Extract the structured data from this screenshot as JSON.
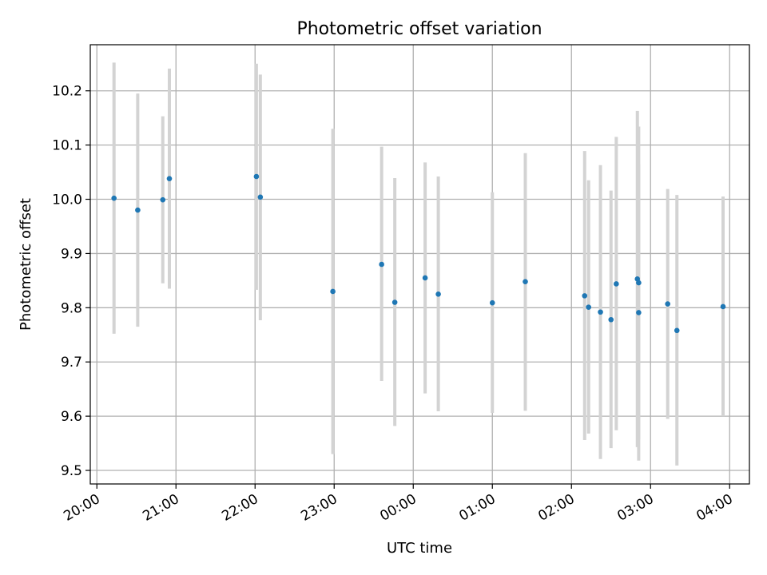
{
  "chart_data": {
    "type": "scatter",
    "title": "Photometric offset variation",
    "xlabel": "UTC time",
    "ylabel": "Photometric offset",
    "grid": true,
    "legend": "none",
    "x_range": [
      "19:55",
      "04:15"
    ],
    "ylim": [
      9.475,
      10.285
    ],
    "x_ticks": [
      "20:00",
      "21:00",
      "22:00",
      "23:00",
      "00:00",
      "01:00",
      "02:00",
      "03:00",
      "04:00"
    ],
    "y_ticks": [
      "9.5",
      "9.6",
      "9.7",
      "9.8",
      "9.9",
      "10.0",
      "10.1",
      "10.2"
    ],
    "colors": {
      "point": "#1f77b4",
      "errorbar": "#d3d3d3",
      "grid": "#b0b0b0"
    },
    "points": [
      {
        "t": "20:13",
        "y": 10.002,
        "ylow": 9.752,
        "yhigh": 10.252
      },
      {
        "t": "20:31",
        "y": 9.98,
        "ylow": 9.765,
        "yhigh": 10.195
      },
      {
        "t": "20:50",
        "y": 9.999,
        "ylow": 9.845,
        "yhigh": 10.153
      },
      {
        "t": "20:55",
        "y": 10.038,
        "ylow": 9.835,
        "yhigh": 10.241
      },
      {
        "t": "22:01",
        "y": 10.042,
        "ylow": 9.833,
        "yhigh": 10.25
      },
      {
        "t": "22:04",
        "y": 10.004,
        "ylow": 9.777,
        "yhigh": 10.23
      },
      {
        "t": "22:59",
        "y": 9.83,
        "ylow": 9.53,
        "yhigh": 10.13
      },
      {
        "t": "23:36",
        "y": 9.88,
        "ylow": 9.665,
        "yhigh": 10.097
      },
      {
        "t": "23:46",
        "y": 9.81,
        "ylow": 9.582,
        "yhigh": 10.039
      },
      {
        "t": "00:09",
        "y": 9.855,
        "ylow": 9.642,
        "yhigh": 10.068
      },
      {
        "t": "00:19",
        "y": 9.825,
        "ylow": 9.609,
        "yhigh": 10.042
      },
      {
        "t": "01:00",
        "y": 9.809,
        "ylow": 9.606,
        "yhigh": 10.013
      },
      {
        "t": "01:25",
        "y": 9.848,
        "ylow": 9.61,
        "yhigh": 10.085
      },
      {
        "t": "02:10",
        "y": 9.822,
        "ylow": 9.556,
        "yhigh": 10.089
      },
      {
        "t": "02:13",
        "y": 9.801,
        "ylow": 9.568,
        "yhigh": 10.035
      },
      {
        "t": "02:22",
        "y": 9.792,
        "ylow": 9.521,
        "yhigh": 10.063
      },
      {
        "t": "02:30",
        "y": 9.778,
        "ylow": 9.541,
        "yhigh": 10.016
      },
      {
        "t": "02:34",
        "y": 9.844,
        "ylow": 9.574,
        "yhigh": 10.115
      },
      {
        "t": "02:50",
        "y": 9.853,
        "ylow": 9.543,
        "yhigh": 10.163
      },
      {
        "t": "02:51",
        "y": 9.846,
        "ylow": 9.558,
        "yhigh": 10.134
      },
      {
        "t": "02:51",
        "y": 9.791,
        "ylow": 9.518,
        "yhigh": 10.064
      },
      {
        "t": "03:13",
        "y": 9.807,
        "ylow": 9.595,
        "yhigh": 10.019
      },
      {
        "t": "03:20",
        "y": 9.758,
        "ylow": 9.509,
        "yhigh": 10.008
      },
      {
        "t": "03:55",
        "y": 9.802,
        "ylow": 9.6,
        "yhigh": 10.005
      }
    ]
  }
}
